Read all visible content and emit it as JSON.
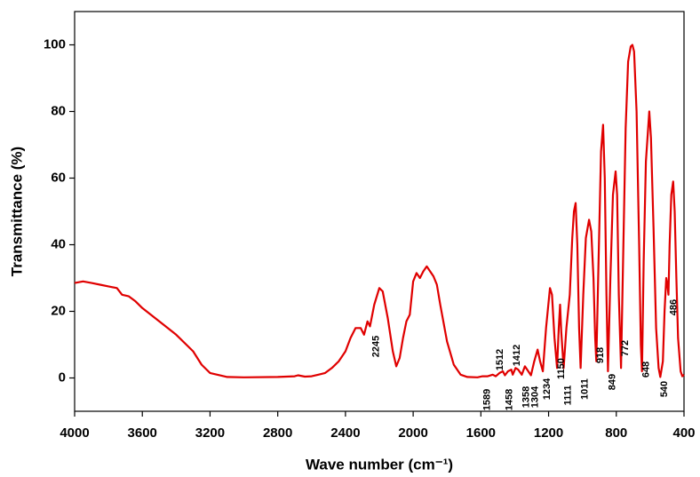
{
  "chart_data": {
    "type": "line",
    "xlabel": "Wave number (cm⁻¹)",
    "ylabel": "Transmittance (%)",
    "x": [
      4000,
      3950,
      3900,
      3850,
      3800,
      3750,
      3720,
      3680,
      3640,
      3600,
      3500,
      3400,
      3300,
      3250,
      3200,
      3100,
      3000,
      2800,
      2700,
      2680,
      2640,
      2600,
      2560,
      2520,
      2480,
      2440,
      2400,
      2370,
      2340,
      2310,
      2290,
      2270,
      2255,
      2230,
      2200,
      2180,
      2150,
      2120,
      2100,
      2080,
      2060,
      2040,
      2020,
      2000,
      1980,
      1960,
      1940,
      1920,
      1900,
      1880,
      1860,
      1840,
      1800,
      1760,
      1720,
      1680,
      1620,
      1590,
      1560,
      1530,
      1512,
      1490,
      1470,
      1458,
      1440,
      1420,
      1412,
      1395,
      1380,
      1358,
      1340,
      1320,
      1304,
      1285,
      1265,
      1250,
      1234,
      1215,
      1192,
      1180,
      1165,
      1150,
      1140,
      1132,
      1125,
      1111,
      1095,
      1075,
      1060,
      1050,
      1040,
      1030,
      1020,
      1011,
      995,
      980,
      961,
      948,
      935,
      925,
      918,
      905,
      890,
      878,
      868,
      858,
      849,
      835,
      820,
      804,
      795,
      785,
      772,
      760,
      745,
      730,
      715,
      705,
      695,
      680,
      665,
      655,
      648,
      638,
      625,
      605,
      595,
      580,
      565,
      550,
      540,
      525,
      515,
      505,
      498,
      492,
      485,
      475,
      464,
      455,
      445,
      435,
      420,
      410,
      400
    ],
    "series": [
      {
        "color": "#e00000",
        "values": [
          28.5,
          29,
          28.5,
          28,
          27.5,
          27,
          25,
          24.5,
          23,
          21,
          17,
          13,
          8,
          4,
          1.5,
          0.3,
          0.2,
          0.3,
          0.5,
          0.8,
          0.4,
          0.5,
          1,
          1.5,
          3,
          5,
          8,
          12,
          15,
          15,
          13,
          17,
          15.5,
          22,
          27,
          26,
          18,
          8,
          3.5,
          6,
          12,
          17,
          19,
          29,
          31.5,
          30,
          32,
          33.5,
          32,
          30.5,
          28,
          22,
          11,
          4,
          1,
          0.3,
          0.2,
          0.5,
          0.5,
          1,
          0.5,
          1.5,
          2,
          0.8,
          2,
          2.5,
          1,
          3,
          2.5,
          1,
          3.5,
          2,
          0.8,
          5,
          8.5,
          5,
          2,
          15,
          27,
          25,
          12,
          3,
          15,
          22,
          14,
          3,
          15,
          25,
          42,
          50,
          52.5,
          40,
          15,
          3,
          25,
          42,
          47.5,
          44,
          30,
          12,
          5,
          35,
          68,
          76,
          60,
          25,
          2,
          30,
          55,
          62,
          55,
          25,
          3,
          35,
          75,
          95,
          99.5,
          100,
          98,
          80,
          40,
          10,
          2,
          35,
          65,
          80,
          72,
          45,
          15,
          3,
          0.3,
          5,
          20,
          30,
          28,
          25,
          40,
          55,
          59,
          50,
          30,
          12,
          2,
          0.5,
          1
        ]
      }
    ],
    "xlim": [
      4000,
      400
    ],
    "xticks": [
      4000,
      3600,
      3200,
      2800,
      2400,
      2000,
      1600,
      1200,
      800,
      400
    ],
    "ylim": [
      -10,
      110
    ],
    "yticks": [
      0,
      20,
      40,
      60,
      80,
      100
    ],
    "annotations": [
      "2245",
      "1589",
      "1512",
      "1458",
      "1412",
      "1358",
      "1304",
      "1234",
      "1150",
      "1111",
      "1011",
      "918",
      "849",
      "772",
      "648",
      "540",
      "486"
    ]
  }
}
